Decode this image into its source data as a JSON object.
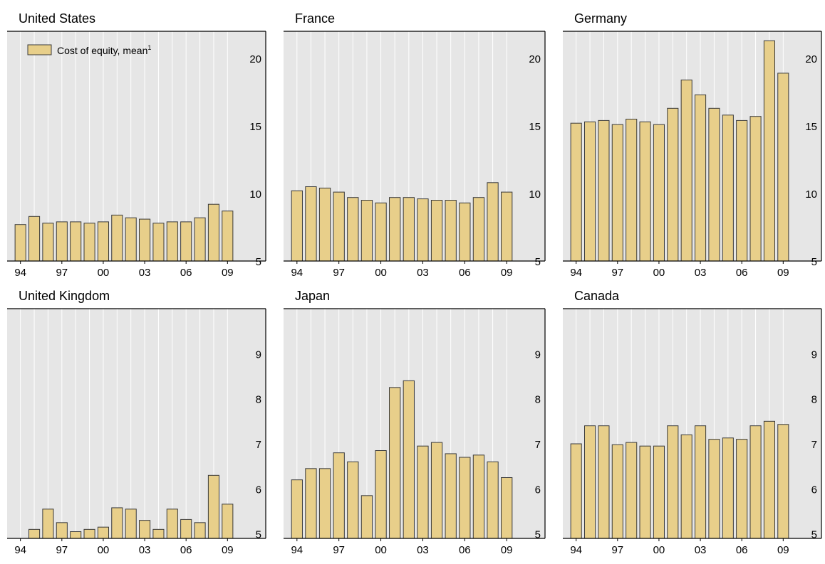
{
  "colors": {
    "plot_bg": "#e6e6e6",
    "grid": "#ffffff",
    "bar_fill": "#e8cf8a",
    "bar_stroke": "#3a3a3a",
    "axis": "#000000"
  },
  "legend": {
    "label": "Cost of equity, mean",
    "superscript": "1",
    "position": "top-left"
  },
  "x_tick_labels": [
    "94",
    "97",
    "00",
    "03",
    "06",
    "09"
  ],
  "chart_data": [
    {
      "type": "bar",
      "title": "United States",
      "categories": [
        "1994",
        "1995",
        "1996",
        "1997",
        "1998",
        "1999",
        "2000",
        "2001",
        "2002",
        "2003",
        "2004",
        "2005",
        "2006",
        "2007",
        "2008",
        "2009"
      ],
      "series": [
        {
          "name": "Cost of equity, mean",
          "values": [
            7.7,
            8.3,
            7.8,
            7.9,
            7.9,
            7.8,
            7.9,
            8.4,
            8.2,
            8.1,
            7.8,
            7.9,
            7.9,
            8.2,
            9.2,
            8.7
          ]
        }
      ],
      "ylim": [
        5,
        22
      ],
      "yticks": [
        5,
        10,
        15,
        20
      ],
      "show_legend": true
    },
    {
      "type": "bar",
      "title": "France",
      "categories": [
        "1994",
        "1995",
        "1996",
        "1997",
        "1998",
        "1999",
        "2000",
        "2001",
        "2002",
        "2003",
        "2004",
        "2005",
        "2006",
        "2007",
        "2008",
        "2009"
      ],
      "series": [
        {
          "name": "Cost of equity, mean",
          "values": [
            10.2,
            10.5,
            10.4,
            10.1,
            9.7,
            9.5,
            9.3,
            9.7,
            9.7,
            9.6,
            9.5,
            9.5,
            9.3,
            9.7,
            10.8,
            10.1
          ]
        }
      ],
      "ylim": [
        5,
        22
      ],
      "yticks": [
        5,
        10,
        15,
        20
      ],
      "show_legend": false
    },
    {
      "type": "bar",
      "title": "Germany",
      "categories": [
        "1994",
        "1995",
        "1996",
        "1997",
        "1998",
        "1999",
        "2000",
        "2001",
        "2002",
        "2003",
        "2004",
        "2005",
        "2006",
        "2007",
        "2008",
        "2009"
      ],
      "series": [
        {
          "name": "Cost of equity, mean",
          "values": [
            15.2,
            15.3,
            15.4,
            15.1,
            15.5,
            15.3,
            15.1,
            16.3,
            18.4,
            17.3,
            16.3,
            15.8,
            15.4,
            15.7,
            21.3,
            18.9
          ]
        }
      ],
      "ylim": [
        5,
        22
      ],
      "yticks": [
        5,
        10,
        15,
        20
      ],
      "show_legend": false
    },
    {
      "type": "bar",
      "title": "United Kingdom",
      "categories": [
        "1994",
        "1995",
        "1996",
        "1997",
        "1998",
        "1999",
        "2000",
        "2001",
        "2002",
        "2003",
        "2004",
        "2005",
        "2006",
        "2007",
        "2008",
        "2009"
      ],
      "series": [
        {
          "name": "Cost of equity, mean",
          "values": [
            4.6,
            5.1,
            5.55,
            5.25,
            5.05,
            5.1,
            5.15,
            5.58,
            5.55,
            5.3,
            5.1,
            5.55,
            5.32,
            5.25,
            6.3,
            5.66
          ]
        }
      ],
      "ylim": [
        4.9,
        10
      ],
      "yticks": [
        5,
        6,
        7,
        8,
        9
      ],
      "show_legend": false
    },
    {
      "type": "bar",
      "title": "Japan",
      "categories": [
        "1994",
        "1995",
        "1996",
        "1997",
        "1998",
        "1999",
        "2000",
        "2001",
        "2002",
        "2003",
        "2004",
        "2005",
        "2006",
        "2007",
        "2008",
        "2009"
      ],
      "series": [
        {
          "name": "Cost of equity, mean",
          "values": [
            6.2,
            6.45,
            6.45,
            6.8,
            6.6,
            5.85,
            6.85,
            8.25,
            8.4,
            6.95,
            7.03,
            6.78,
            6.7,
            6.75,
            6.6,
            6.25
          ]
        }
      ],
      "ylim": [
        4.9,
        10
      ],
      "yticks": [
        5,
        6,
        7,
        8,
        9
      ],
      "show_legend": false
    },
    {
      "type": "bar",
      "title": "Canada",
      "categories": [
        "1994",
        "1995",
        "1996",
        "1997",
        "1998",
        "1999",
        "2000",
        "2001",
        "2002",
        "2003",
        "2004",
        "2005",
        "2006",
        "2007",
        "2008",
        "2009"
      ],
      "series": [
        {
          "name": "Cost of equity, mean",
          "values": [
            7.0,
            7.4,
            7.4,
            6.98,
            7.03,
            6.95,
            6.95,
            7.4,
            7.2,
            7.4,
            7.1,
            7.13,
            7.1,
            7.4,
            7.5,
            7.43
          ]
        }
      ],
      "ylim": [
        4.9,
        10
      ],
      "yticks": [
        5,
        6,
        7,
        8,
        9
      ],
      "show_legend": false
    }
  ]
}
